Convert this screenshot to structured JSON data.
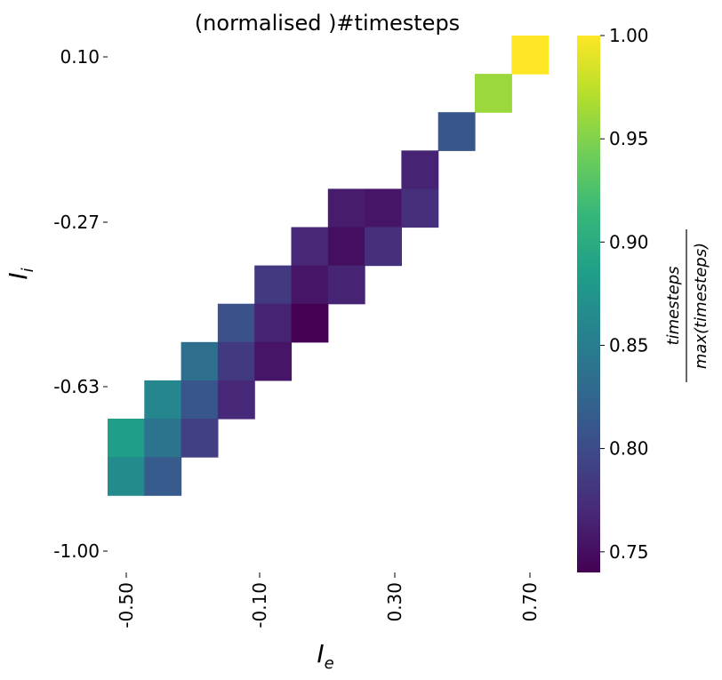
{
  "chart_data": {
    "type": "heatmap",
    "title": "(normalised )#timesteps",
    "xlabel": "I",
    "xlabel_sub": "e",
    "ylabel": "I",
    "ylabel_sub": "i",
    "x_tick_labels": [
      "-0.50",
      "-0.10",
      "0.30",
      "0.70"
    ],
    "y_tick_labels": [
      "0.10",
      "-0.27",
      "-0.63",
      "-1.00"
    ],
    "colorbar": {
      "label_numerator": "timesteps",
      "label_denominator": "max(timesteps)",
      "min": 0.74,
      "max": 1.0,
      "tick_labels": [
        "0.75",
        "0.80",
        "0.85",
        "0.90",
        "0.95",
        "1.00"
      ],
      "ticks": [
        0.75,
        0.8,
        0.85,
        0.9,
        0.95,
        1.0
      ],
      "colormap": "viridis"
    },
    "n_cols": 12,
    "n_rows": 14,
    "x_range": [
      -0.5,
      0.7
    ],
    "y_range": [
      -1.0,
      0.1
    ],
    "cells": [
      {
        "row": 0,
        "col": 11,
        "value": 1.0
      },
      {
        "row": 1,
        "col": 10,
        "value": 0.96
      },
      {
        "row": 2,
        "col": 9,
        "value": 0.81
      },
      {
        "row": 3,
        "col": 8,
        "value": 0.765
      },
      {
        "row": 4,
        "col": 6,
        "value": 0.76
      },
      {
        "row": 4,
        "col": 7,
        "value": 0.755
      },
      {
        "row": 4,
        "col": 8,
        "value": 0.775
      },
      {
        "row": 5,
        "col": 5,
        "value": 0.77
      },
      {
        "row": 5,
        "col": 6,
        "value": 0.75
      },
      {
        "row": 5,
        "col": 7,
        "value": 0.775
      },
      {
        "row": 6,
        "col": 4,
        "value": 0.785
      },
      {
        "row": 6,
        "col": 5,
        "value": 0.755
      },
      {
        "row": 6,
        "col": 6,
        "value": 0.765
      },
      {
        "row": 7,
        "col": 3,
        "value": 0.805
      },
      {
        "row": 7,
        "col": 4,
        "value": 0.765
      },
      {
        "row": 7,
        "col": 5,
        "value": 0.74
      },
      {
        "row": 8,
        "col": 2,
        "value": 0.835
      },
      {
        "row": 8,
        "col": 3,
        "value": 0.785
      },
      {
        "row": 8,
        "col": 4,
        "value": 0.755
      },
      {
        "row": 9,
        "col": 1,
        "value": 0.86
      },
      {
        "row": 9,
        "col": 2,
        "value": 0.81
      },
      {
        "row": 9,
        "col": 3,
        "value": 0.77
      },
      {
        "row": 10,
        "col": 0,
        "value": 0.885
      },
      {
        "row": 10,
        "col": 1,
        "value": 0.84
      },
      {
        "row": 10,
        "col": 2,
        "value": 0.79
      },
      {
        "row": 11,
        "col": 0,
        "value": 0.865
      },
      {
        "row": 11,
        "col": 1,
        "value": 0.815
      }
    ]
  }
}
